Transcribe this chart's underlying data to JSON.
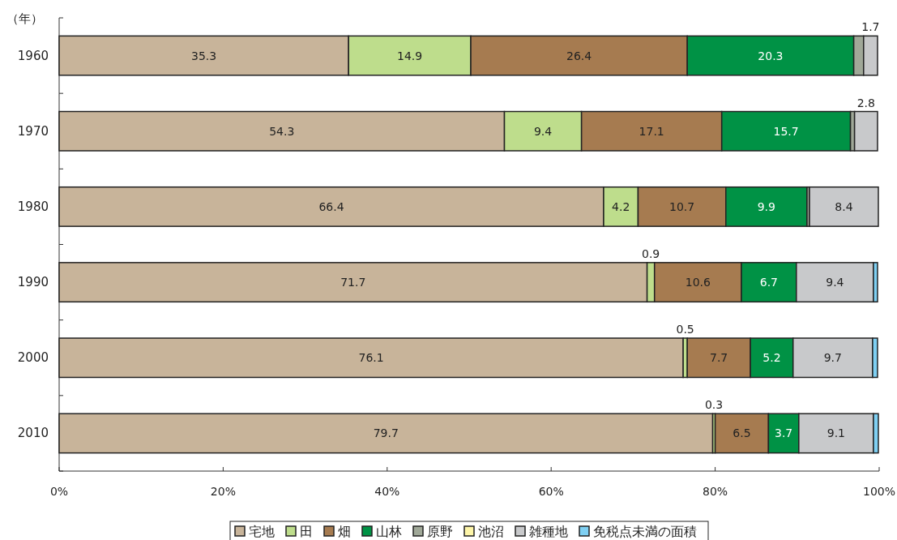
{
  "chart_data": {
    "type": "bar",
    "orientation": "horizontal",
    "stacked": true,
    "ylabel": "（年）",
    "categories": [
      "1960",
      "1970",
      "1980",
      "1990",
      "2000",
      "2010"
    ],
    "xlim": [
      0,
      100
    ],
    "xticks": [
      {
        "value": 0,
        "label": "0%"
      },
      {
        "value": 20,
        "label": "20%"
      },
      {
        "value": 40,
        "label": "40%"
      },
      {
        "value": 60,
        "label": "60%"
      },
      {
        "value": 80,
        "label": "80%"
      },
      {
        "value": 100,
        "label": "100%"
      }
    ],
    "legend": "bottom",
    "grid": false,
    "series": [
      {
        "name": "宅地",
        "color": "#c8b49a",
        "values": [
          35.3,
          54.3,
          66.4,
          71.7,
          76.1,
          79.7
        ],
        "value_labels": [
          "35.3",
          "54.3",
          "66.4",
          "71.7",
          "76.1",
          "79.7"
        ]
      },
      {
        "name": "田",
        "color": "#bedd8c",
        "values": [
          14.9,
          9.4,
          4.2,
          0.9,
          0.5,
          0.3
        ],
        "value_labels": [
          "14.9",
          "9.4",
          "4.2",
          "0.9",
          "0.5",
          "0.3"
        ]
      },
      {
        "name": "畑",
        "color": "#a67b50",
        "values": [
          26.4,
          17.1,
          10.7,
          10.6,
          7.7,
          6.5
        ],
        "value_labels": [
          "26.4",
          "17.1",
          "10.7",
          "10.6",
          "7.7",
          "6.5"
        ]
      },
      {
        "name": "山林",
        "color": "#009245",
        "values": [
          20.3,
          15.7,
          9.9,
          6.7,
          5.2,
          3.7
        ],
        "value_labels": [
          "20.3",
          "15.7",
          "9.9",
          "6.7",
          "5.2",
          "3.7"
        ]
      },
      {
        "name": "原野",
        "color": "#a0a898",
        "values": [
          1.2,
          0.5,
          0.3,
          null,
          null,
          null
        ],
        "value_labels": [
          null,
          null,
          null,
          null,
          null,
          null
        ]
      },
      {
        "name": "池沼",
        "color": "#fdf5a8",
        "values": [
          null,
          null,
          null,
          null,
          null,
          null
        ],
        "value_labels": [
          null,
          null,
          null,
          null,
          null,
          null
        ]
      },
      {
        "name": "雑種地",
        "color": "#c8c9cb",
        "values": [
          1.7,
          2.8,
          8.4,
          9.4,
          9.7,
          9.1
        ],
        "value_labels": [
          "1.7",
          "2.8",
          "8.4",
          "9.4",
          "9.7",
          "9.1"
        ]
      },
      {
        "name": "免税点未満の面積",
        "color": "#7fd0f3",
        "values": [
          null,
          null,
          null,
          0.5,
          0.6,
          0.6
        ],
        "value_labels": [
          null,
          null,
          null,
          null,
          null,
          null
        ]
      }
    ]
  }
}
